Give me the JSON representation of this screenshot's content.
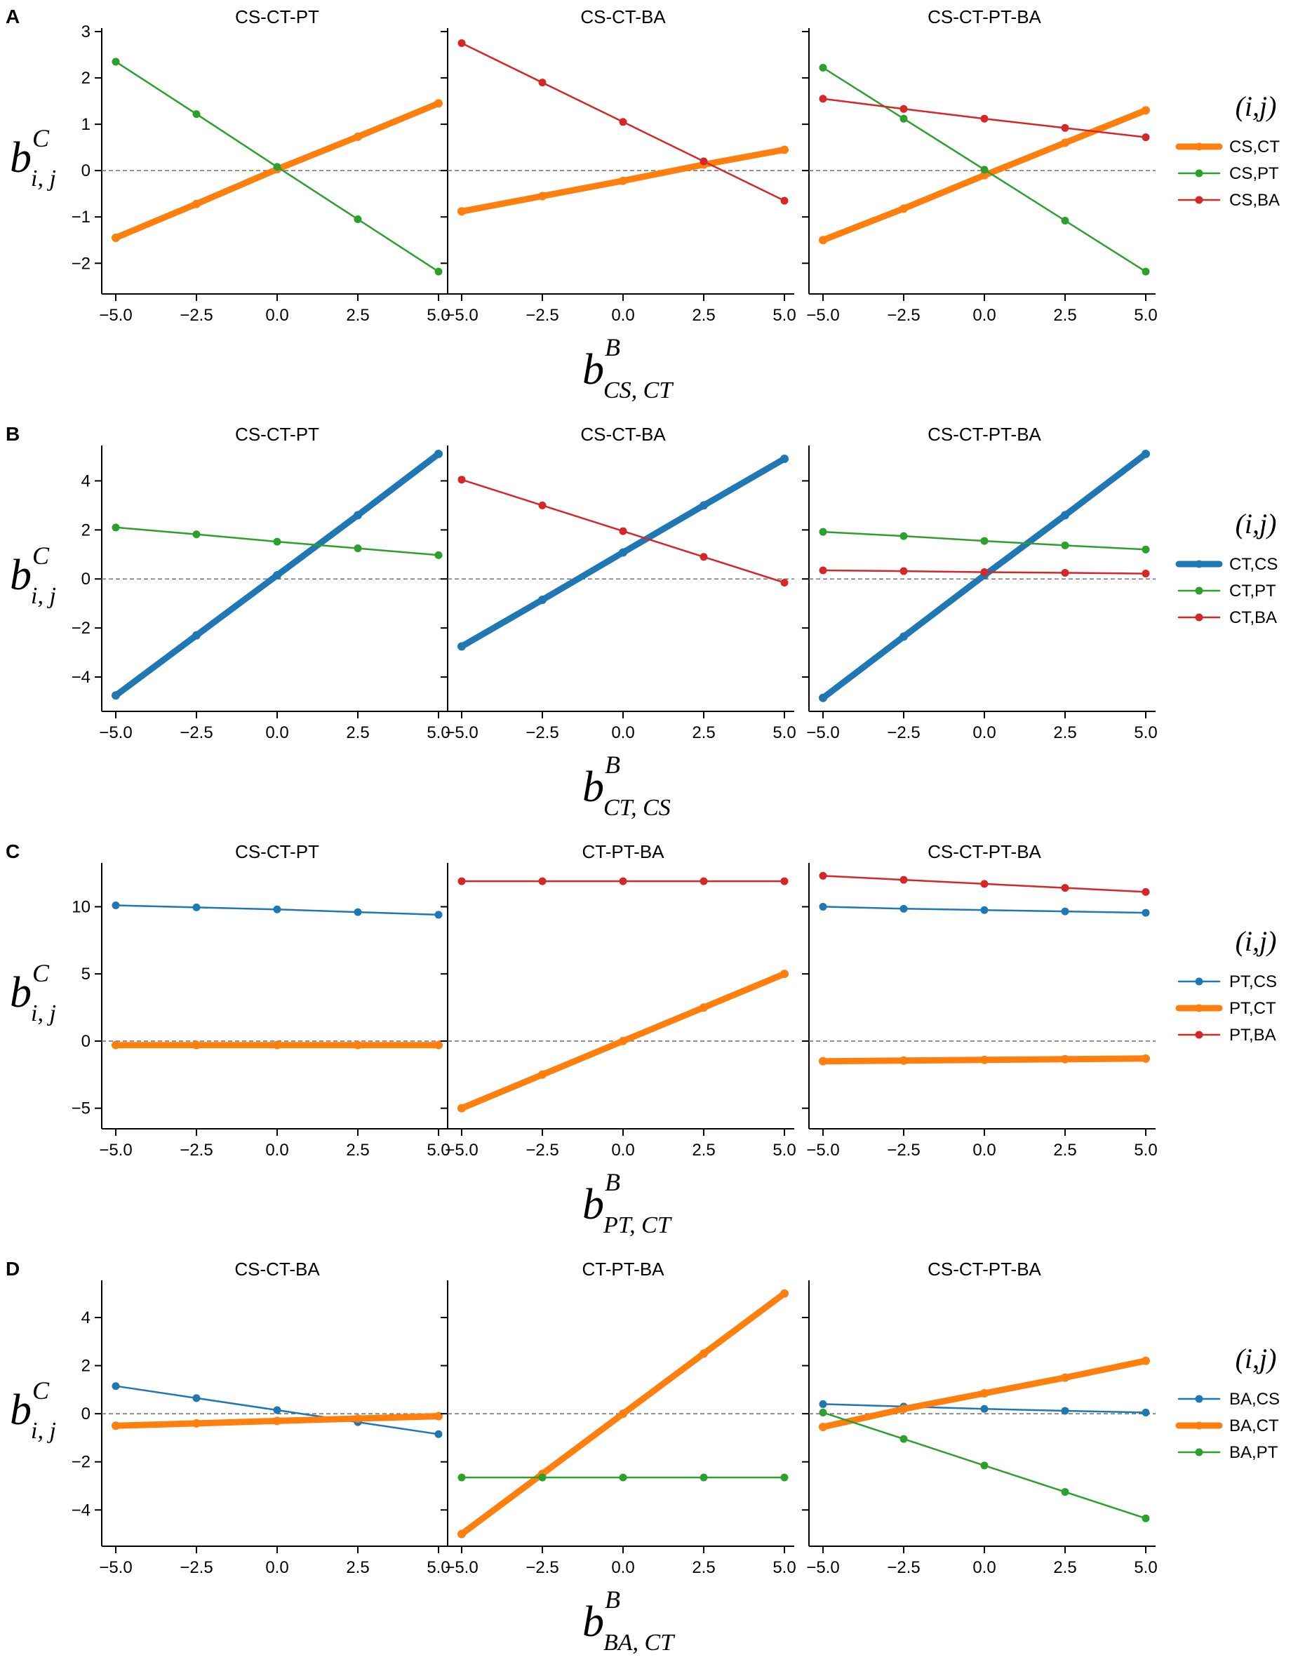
{
  "colors": {
    "blue": "#1f77b4",
    "orange": "#ff7f0e",
    "green": "#2ca02c",
    "red": "#d62728"
  },
  "rows": [
    {
      "label": "A",
      "ylabel": {
        "base": "b",
        "sup": "C",
        "sub": "i, j"
      },
      "xlabel": {
        "base": "b",
        "sup": "B",
        "sub": "CS, CT"
      },
      "yticks": [
        3,
        2,
        1,
        0,
        -1,
        -2
      ],
      "yticklabels": [
        "3",
        "2",
        "1",
        "0",
        "−1",
        "−2"
      ],
      "ylim": [
        -2.45,
        3.0
      ],
      "legend": {
        "title": "(i,j)",
        "entries": [
          {
            "label": "CS,CT",
            "color": "orange",
            "thick": true
          },
          {
            "label": "CS,PT",
            "color": "green",
            "thick": false
          },
          {
            "label": "CS,BA",
            "color": "red",
            "thick": false
          }
        ]
      }
    },
    {
      "label": "B",
      "ylabel": {
        "base": "b",
        "sup": "C",
        "sub": "i, j"
      },
      "xlabel": {
        "base": "b",
        "sup": "B",
        "sub": "CT, CS"
      },
      "yticks": [
        4,
        2,
        0,
        -2,
        -4
      ],
      "yticklabels": [
        "4",
        "2",
        "0",
        "−2",
        "−4"
      ],
      "ylim": [
        -5.0,
        5.3
      ],
      "legend": {
        "title": "(i,j)",
        "entries": [
          {
            "label": "CT,CS",
            "color": "blue",
            "thick": true
          },
          {
            "label": "CT,PT",
            "color": "green",
            "thick": false
          },
          {
            "label": "CT,BA",
            "color": "red",
            "thick": false
          }
        ]
      }
    },
    {
      "label": "C",
      "ylabel": {
        "base": "b",
        "sup": "C",
        "sub": "i, j"
      },
      "xlabel": {
        "base": "b",
        "sup": "B",
        "sub": "PT, CT"
      },
      "yticks": [
        10,
        5,
        0,
        -5
      ],
      "yticklabels": [
        "10",
        "5",
        "0",
        "−5"
      ],
      "ylim": [
        -5.8,
        13.0
      ],
      "legend": {
        "title": "(i,j)",
        "entries": [
          {
            "label": "PT,CS",
            "color": "blue",
            "thick": false
          },
          {
            "label": "PT,CT",
            "color": "orange",
            "thick": true
          },
          {
            "label": "PT,BA",
            "color": "red",
            "thick": false
          }
        ]
      }
    },
    {
      "label": "D",
      "ylabel": {
        "base": "b",
        "sup": "C",
        "sub": "i, j"
      },
      "xlabel": {
        "base": "b",
        "sup": "B",
        "sub": "BA, CT"
      },
      "yticks": [
        4,
        2,
        0,
        -2,
        -4
      ],
      "yticklabels": [
        "4",
        "2",
        "0",
        "−2",
        "−4"
      ],
      "ylim": [
        -5.1,
        5.4
      ],
      "legend": {
        "title": "(i,j)",
        "entries": [
          {
            "label": "BA,CS",
            "color": "blue",
            "thick": false
          },
          {
            "label": "BA,CT",
            "color": "orange",
            "thick": true
          },
          {
            "label": "BA,PT",
            "color": "green",
            "thick": false
          }
        ]
      }
    }
  ],
  "chart_data": [
    {
      "type": "line",
      "panel_label": "A",
      "title": "CS-CT-PT",
      "xlabel": "b^B_{CS,CT}",
      "ylabel": "b^C_{i,j}",
      "x": [
        -5.0,
        -2.5,
        0.0,
        2.5,
        5.0
      ],
      "xticklabels": [
        "−5.0",
        "−2.5",
        "0.0",
        "2.5",
        "5.0"
      ],
      "xlim": [
        -5.0,
        5.0
      ],
      "ylim": [
        -2.45,
        3.0
      ],
      "series": [
        {
          "name": "CS,CT",
          "color": "orange",
          "thick": true,
          "values": [
            -1.45,
            -0.72,
            0.03,
            0.73,
            1.45
          ]
        },
        {
          "name": "CS,PT",
          "color": "green",
          "thick": false,
          "values": [
            2.35,
            1.22,
            0.08,
            -1.05,
            -2.18
          ]
        }
      ]
    },
    {
      "type": "line",
      "panel_label": "A",
      "title": "CS-CT-BA",
      "xlabel": "b^B_{CS,CT}",
      "ylabel": "b^C_{i,j}",
      "x": [
        -5.0,
        -2.5,
        0.0,
        2.5,
        5.0
      ],
      "xticklabels": [
        "−5.0",
        "−2.5",
        "0.0",
        "2.5",
        "5.0"
      ],
      "xlim": [
        -5.0,
        5.0
      ],
      "ylim": [
        -2.45,
        3.0
      ],
      "series": [
        {
          "name": "CS,CT",
          "color": "orange",
          "thick": true,
          "values": [
            -0.88,
            -0.55,
            -0.22,
            0.13,
            0.45
          ]
        },
        {
          "name": "CS,BA",
          "color": "red",
          "thick": false,
          "values": [
            2.75,
            1.9,
            1.05,
            0.2,
            -0.65
          ]
        }
      ]
    },
    {
      "type": "line",
      "panel_label": "A",
      "title": "CS-CT-PT-BA",
      "xlabel": "b^B_{CS,CT}",
      "ylabel": "b^C_{i,j}",
      "x": [
        -5.0,
        -2.5,
        0.0,
        2.5,
        5.0
      ],
      "xticklabels": [
        "−5.0",
        "−2.5",
        "0.0",
        "2.5",
        "5.0"
      ],
      "xlim": [
        -5.0,
        5.0
      ],
      "ylim": [
        -2.45,
        3.0
      ],
      "series": [
        {
          "name": "CS,CT",
          "color": "orange",
          "thick": true,
          "values": [
            -1.5,
            -0.82,
            -0.1,
            0.6,
            1.3
          ]
        },
        {
          "name": "CS,PT",
          "color": "green",
          "thick": false,
          "values": [
            2.22,
            1.12,
            0.02,
            -1.08,
            -2.18
          ]
        },
        {
          "name": "CS,BA",
          "color": "red",
          "thick": false,
          "values": [
            1.55,
            1.33,
            1.12,
            0.92,
            0.72
          ]
        }
      ]
    },
    {
      "type": "line",
      "panel_label": "B",
      "title": "CS-CT-PT",
      "xlabel": "b^B_{CT,CS}",
      "ylabel": "b^C_{i,j}",
      "x": [
        -5.0,
        -2.5,
        0.0,
        2.5,
        5.0
      ],
      "xticklabels": [
        "−5.0",
        "−2.5",
        "0.0",
        "2.5",
        "5.0"
      ],
      "xlim": [
        -5.0,
        5.0
      ],
      "ylim": [
        -5.0,
        5.3
      ],
      "series": [
        {
          "name": "CT,CS",
          "color": "blue",
          "thick": true,
          "values": [
            -4.75,
            -2.3,
            0.15,
            2.6,
            5.1
          ]
        },
        {
          "name": "CT,PT",
          "color": "green",
          "thick": false,
          "values": [
            2.1,
            1.82,
            1.52,
            1.25,
            0.97
          ]
        }
      ]
    },
    {
      "type": "line",
      "panel_label": "B",
      "title": "CS-CT-BA",
      "xlabel": "b^B_{CT,CS}",
      "ylabel": "b^C_{i,j}",
      "x": [
        -5.0,
        -2.5,
        0.0,
        2.5,
        5.0
      ],
      "xticklabels": [
        "−5.0",
        "−2.5",
        "0.0",
        "2.5",
        "5.0"
      ],
      "xlim": [
        -5.0,
        5.0
      ],
      "ylim": [
        -5.0,
        5.3
      ],
      "series": [
        {
          "name": "CT,CS",
          "color": "blue",
          "thick": true,
          "values": [
            -2.75,
            -0.85,
            1.08,
            3.0,
            4.9
          ]
        },
        {
          "name": "CT,BA",
          "color": "red",
          "thick": false,
          "values": [
            4.05,
            3.0,
            1.95,
            0.9,
            -0.15
          ]
        }
      ]
    },
    {
      "type": "line",
      "panel_label": "B",
      "title": "CS-CT-PT-BA",
      "xlabel": "b^B_{CT,CS}",
      "ylabel": "b^C_{i,j}",
      "x": [
        -5.0,
        -2.5,
        0.0,
        2.5,
        5.0
      ],
      "xticklabels": [
        "−5.0",
        "−2.5",
        "0.0",
        "2.5",
        "5.0"
      ],
      "xlim": [
        -5.0,
        5.0
      ],
      "ylim": [
        -5.0,
        5.3
      ],
      "series": [
        {
          "name": "CT,CS",
          "color": "blue",
          "thick": true,
          "values": [
            -4.85,
            -2.35,
            0.15,
            2.6,
            5.1
          ]
        },
        {
          "name": "CT,PT",
          "color": "green",
          "thick": false,
          "values": [
            1.92,
            1.75,
            1.55,
            1.37,
            1.2
          ]
        },
        {
          "name": "CT,BA",
          "color": "red",
          "thick": false,
          "values": [
            0.35,
            0.32,
            0.28,
            0.25,
            0.22
          ]
        }
      ]
    },
    {
      "type": "line",
      "panel_label": "C",
      "title": "CS-CT-PT",
      "xlabel": "b^B_{PT,CT}",
      "ylabel": "b^C_{i,j}",
      "x": [
        -5.0,
        -2.5,
        0.0,
        2.5,
        5.0
      ],
      "xticklabels": [
        "−5.0",
        "−2.5",
        "0.0",
        "2.5",
        "5.0"
      ],
      "xlim": [
        -5.0,
        5.0
      ],
      "ylim": [
        -5.8,
        13.0
      ],
      "series": [
        {
          "name": "PT,CS",
          "color": "blue",
          "thick": false,
          "values": [
            10.1,
            9.95,
            9.8,
            9.6,
            9.4
          ]
        },
        {
          "name": "PT,CT",
          "color": "orange",
          "thick": true,
          "values": [
            -0.3,
            -0.3,
            -0.3,
            -0.3,
            -0.3
          ]
        }
      ]
    },
    {
      "type": "line",
      "panel_label": "C",
      "title": "CT-PT-BA",
      "xlabel": "b^B_{PT,CT}",
      "ylabel": "b^C_{i,j}",
      "x": [
        -5.0,
        -2.5,
        0.0,
        2.5,
        5.0
      ],
      "xticklabels": [
        "−5.0",
        "−2.5",
        "0.0",
        "2.5",
        "5.0"
      ],
      "xlim": [
        -5.0,
        5.0
      ],
      "ylim": [
        -5.8,
        13.0
      ],
      "series": [
        {
          "name": "PT,CT",
          "color": "orange",
          "thick": true,
          "values": [
            -5.0,
            -2.5,
            0.0,
            2.5,
            5.0
          ]
        },
        {
          "name": "PT,BA",
          "color": "red",
          "thick": false,
          "values": [
            11.9,
            11.9,
            11.9,
            11.9,
            11.9
          ]
        }
      ]
    },
    {
      "type": "line",
      "panel_label": "C",
      "title": "CS-CT-PT-BA",
      "xlabel": "b^B_{PT,CT}",
      "ylabel": "b^C_{i,j}",
      "x": [
        -5.0,
        -2.5,
        0.0,
        2.5,
        5.0
      ],
      "xticklabels": [
        "−5.0",
        "−2.5",
        "0.0",
        "2.5",
        "5.0"
      ],
      "xlim": [
        -5.0,
        5.0
      ],
      "ylim": [
        -5.8,
        13.0
      ],
      "series": [
        {
          "name": "PT,CS",
          "color": "blue",
          "thick": false,
          "values": [
            10.0,
            9.85,
            9.75,
            9.65,
            9.55
          ]
        },
        {
          "name": "PT,CT",
          "color": "orange",
          "thick": true,
          "values": [
            -1.5,
            -1.45,
            -1.4,
            -1.35,
            -1.3
          ]
        },
        {
          "name": "PT,BA",
          "color": "red",
          "thick": false,
          "values": [
            12.3,
            12.0,
            11.7,
            11.4,
            11.1
          ]
        }
      ]
    },
    {
      "type": "line",
      "panel_label": "D",
      "title": "CS-CT-BA",
      "xlabel": "b^B_{BA,CT}",
      "ylabel": "b^C_{i,j}",
      "x": [
        -5.0,
        -2.5,
        0.0,
        2.5,
        5.0
      ],
      "xticklabels": [
        "−5.0",
        "−2.5",
        "0.0",
        "2.5",
        "5.0"
      ],
      "xlim": [
        -5.0,
        5.0
      ],
      "ylim": [
        -5.1,
        5.4
      ],
      "series": [
        {
          "name": "BA,CS",
          "color": "blue",
          "thick": false,
          "values": [
            1.15,
            0.65,
            0.15,
            -0.35,
            -0.85
          ]
        },
        {
          "name": "BA,CT",
          "color": "orange",
          "thick": true,
          "values": [
            -0.5,
            -0.4,
            -0.3,
            -0.2,
            -0.1
          ]
        }
      ]
    },
    {
      "type": "line",
      "panel_label": "D",
      "title": "CT-PT-BA",
      "xlabel": "b^B_{BA,CT}",
      "ylabel": "b^C_{i,j}",
      "x": [
        -5.0,
        -2.5,
        0.0,
        2.5,
        5.0
      ],
      "xticklabels": [
        "−5.0",
        "−2.5",
        "0.0",
        "2.5",
        "5.0"
      ],
      "xlim": [
        -5.0,
        5.0
      ],
      "ylim": [
        -5.1,
        5.4
      ],
      "series": [
        {
          "name": "BA,CT",
          "color": "orange",
          "thick": true,
          "values": [
            -5.0,
            -2.5,
            0.0,
            2.5,
            5.0
          ]
        },
        {
          "name": "BA,PT",
          "color": "green",
          "thick": false,
          "values": [
            -2.65,
            -2.65,
            -2.65,
            -2.65,
            -2.65
          ]
        }
      ]
    },
    {
      "type": "line",
      "panel_label": "D",
      "title": "CS-CT-PT-BA",
      "xlabel": "b^B_{BA,CT}",
      "ylabel": "b^C_{i,j}",
      "x": [
        -5.0,
        -2.5,
        0.0,
        2.5,
        5.0
      ],
      "xticklabels": [
        "−5.0",
        "−2.5",
        "0.0",
        "2.5",
        "5.0"
      ],
      "xlim": [
        -5.0,
        5.0
      ],
      "ylim": [
        -5.1,
        5.4
      ],
      "series": [
        {
          "name": "BA,CS",
          "color": "blue",
          "thick": false,
          "values": [
            0.4,
            0.3,
            0.2,
            0.12,
            0.05
          ]
        },
        {
          "name": "BA,CT",
          "color": "orange",
          "thick": true,
          "values": [
            -0.55,
            0.2,
            0.85,
            1.5,
            2.2
          ]
        },
        {
          "name": "BA,PT",
          "color": "green",
          "thick": false,
          "values": [
            0.05,
            -1.05,
            -2.15,
            -3.25,
            -4.35
          ]
        }
      ]
    }
  ]
}
